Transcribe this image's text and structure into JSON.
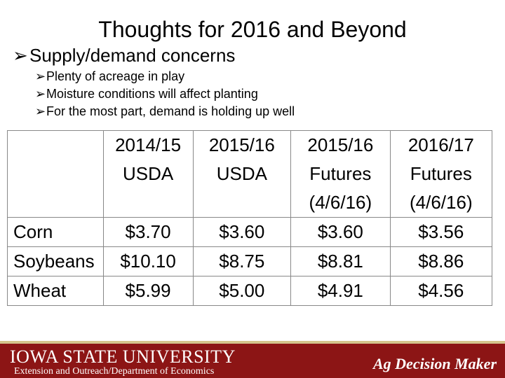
{
  "slide": {
    "title": "Thoughts for 2016 and Beyond",
    "main_bullet": "Supply/demand concerns",
    "sub_bullets": [
      "Plenty of acreage in play",
      "Moisture conditions will affect planting",
      "For the most part, demand is holding up well"
    ]
  },
  "table": {
    "headers": [
      [
        "2014/15",
        "USDA"
      ],
      [
        "2015/16",
        "USDA"
      ],
      [
        "2015/16",
        "Futures",
        "(4/6/16)"
      ],
      [
        "2016/17",
        "Futures",
        "(4/6/16)"
      ]
    ],
    "rows": [
      {
        "label": "Corn",
        "values": [
          "$3.70",
          "$3.60",
          "$3.60",
          "$3.56"
        ]
      },
      {
        "label": "Soybeans",
        "values": [
          "$10.10",
          "$8.75",
          "$8.81",
          "$8.86"
        ]
      },
      {
        "label": "Wheat",
        "values": [
          "$5.99",
          "$5.00",
          "$4.91",
          "$4.56"
        ]
      }
    ]
  },
  "footer": {
    "university": "IOWA STATE UNIVERSITY",
    "department": "Extension and Outreach/Department of Economics",
    "brand": "Ag Decision Maker",
    "color": "#8c1515"
  }
}
